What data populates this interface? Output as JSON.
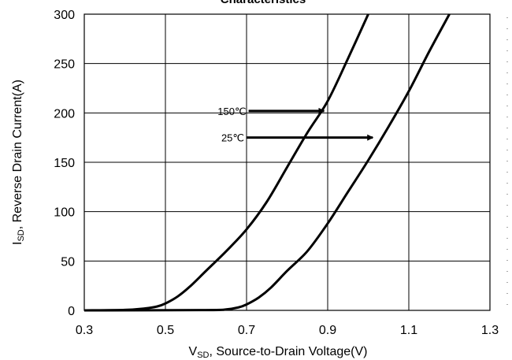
{
  "chart_data": {
    "type": "line",
    "title": "Characteristics",
    "xlabel": {
      "main": "V",
      "sub": "SD",
      "rest": ", Source-to-Drain Voltage(V)"
    },
    "ylabel": {
      "main": "I",
      "sub": "SD",
      "rest": ", Reverse  Drain Current(A)"
    },
    "xlim": [
      0.3,
      1.3
    ],
    "ylim": [
      0,
      300
    ],
    "xticks": [
      "0.3",
      "0.5",
      "0.7",
      "0.9",
      "1.1",
      "1.3"
    ],
    "yticks": [
      "0",
      "50",
      "100",
      "150",
      "200",
      "250",
      "300"
    ],
    "grid": true,
    "series": [
      {
        "name": "150℃",
        "x": [
          0.3,
          0.4,
          0.45,
          0.48,
          0.5,
          0.53,
          0.56,
          0.6,
          0.65,
          0.7,
          0.75,
          0.8,
          0.85,
          0.9,
          0.95,
          1.0
        ],
        "y": [
          0,
          0.5,
          2,
          4,
          7,
          14,
          24,
          40,
          60,
          82,
          110,
          145,
          180,
          212,
          255,
          300
        ]
      },
      {
        "name": "25℃",
        "x": [
          0.3,
          0.6,
          0.65,
          0.68,
          0.7,
          0.73,
          0.76,
          0.8,
          0.85,
          0.9,
          0.95,
          1.0,
          1.05,
          1.1,
          1.15,
          1.2
        ],
        "y": [
          0,
          0.3,
          1,
          3,
          6,
          13,
          23,
          40,
          60,
          88,
          120,
          152,
          186,
          222,
          262,
          300
        ]
      }
    ],
    "annotations": [
      {
        "text": "150℃",
        "arrow_from": [
          0.705,
          202
        ],
        "arrow_to": [
          0.895,
          202
        ]
      },
      {
        "text": "25℃",
        "arrow_from": [
          0.7,
          175
        ],
        "arrow_to": [
          1.015,
          175
        ]
      }
    ]
  }
}
